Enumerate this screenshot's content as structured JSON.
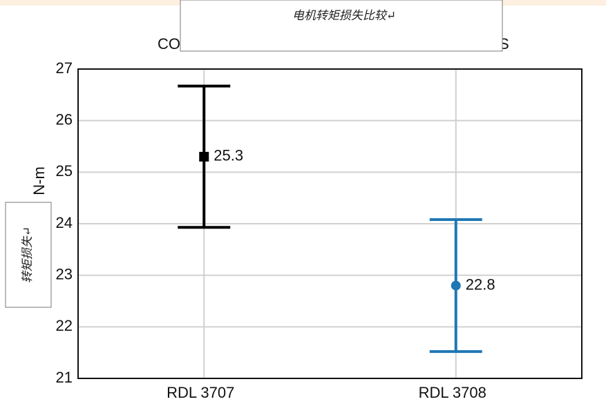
{
  "chart_data": {
    "type": "errorbar",
    "title_left": "CO",
    "title_right": "S",
    "overlay_title": "电机转矩损失比较↵",
    "ylabel": "N-m",
    "overlay_ylabel": "转矩损失↵",
    "categories": [
      "RDL 3707",
      "RDL 3708"
    ],
    "values": [
      25.3,
      22.8
    ],
    "errors": [
      1.37,
      1.28
    ],
    "colors": [
      "#000000",
      "#1f77b4"
    ],
    "markers": [
      "square",
      "circle"
    ],
    "ylim": [
      21,
      27
    ],
    "yticks": [
      21,
      22,
      23,
      24,
      25,
      26,
      27
    ],
    "grid": true
  }
}
